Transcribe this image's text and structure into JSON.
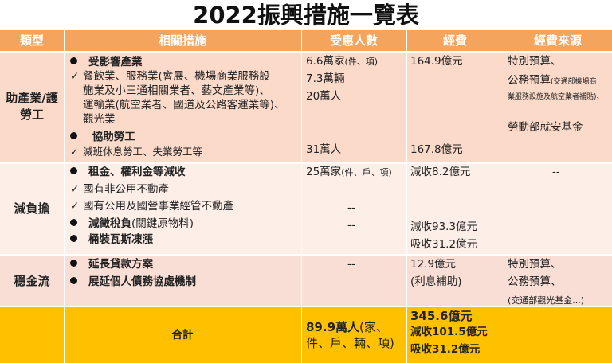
{
  "title": "2022振興措施一覽表",
  "headers": [
    "類型",
    "相關措施",
    "受惠人數",
    "經費",
    "經費來源"
  ],
  "colors": {
    "header": "#F4A45C",
    "row1": "#FBDACA",
    "row2": "#FDEFE8",
    "row3": "#F9DED6",
    "total": "#FFC000"
  },
  "rows": [
    {
      "type": "助產業/護勞工",
      "type_lines": [
        "助產業/護",
        "勞工"
      ],
      "measures": {
        "b1": "受影響產業",
        "c1": [
          "餐飲業、服務業(會展、機場商業服務設",
          "施業及小三通相關業者、藝文產業等)、",
          "運輸業(航空業者、國道及公路客運業等)、",
          "觀光業"
        ],
        "b2": "協助勞工",
        "c2": "減班休息勞工、失業勞工等"
      },
      "beneficiaries": [
        "6.6萬家",
        "(件、項)",
        "7.3萬輛",
        "20萬人",
        "31萬人"
      ],
      "funding": [
        "164.9億元",
        "167.8億元"
      ],
      "sources": [
        "特別預算、",
        "公務預算",
        "(交通部機場商",
        "業服務設施及航空業者補貼)、",
        "勞動部就安基金"
      ]
    },
    {
      "type": "減負擔",
      "measures": {
        "b1": "租金、權利金等減收",
        "c1": "國有非公用不動產",
        "c2": "國有公用及國營事業經管不動產",
        "b2": "減徵稅負",
        "b2_note": "(關鍵原物料)",
        "b3": "桶裝瓦斯凍漲"
      },
      "beneficiaries": [
        "25萬家",
        "(件、戶、項)",
        "--",
        "--"
      ],
      "funding": [
        "減收8.2億元",
        "減收93.3億元",
        "吸收31.2億元"
      ],
      "sources": [
        "--"
      ]
    },
    {
      "type": "穩金流",
      "measures": {
        "b1": "延長貸款方案",
        "b2": "展延個人債務協處機制"
      },
      "beneficiaries": [
        "--"
      ],
      "funding": [
        "12.9億元",
        "(利息補助)"
      ],
      "sources": [
        "特別預算、",
        "公務預算、",
        "(交通部觀光基金...)"
      ]
    }
  ],
  "total": {
    "label": "合計",
    "beneficiaries_bold": "89.9萬人",
    "beneficiaries_rest": "(家、",
    "beneficiaries_line2": "件、戶、輛、項)",
    "funding": [
      "345.6億元",
      "減收101.5億元",
      "吸收31.2億元"
    ]
  }
}
